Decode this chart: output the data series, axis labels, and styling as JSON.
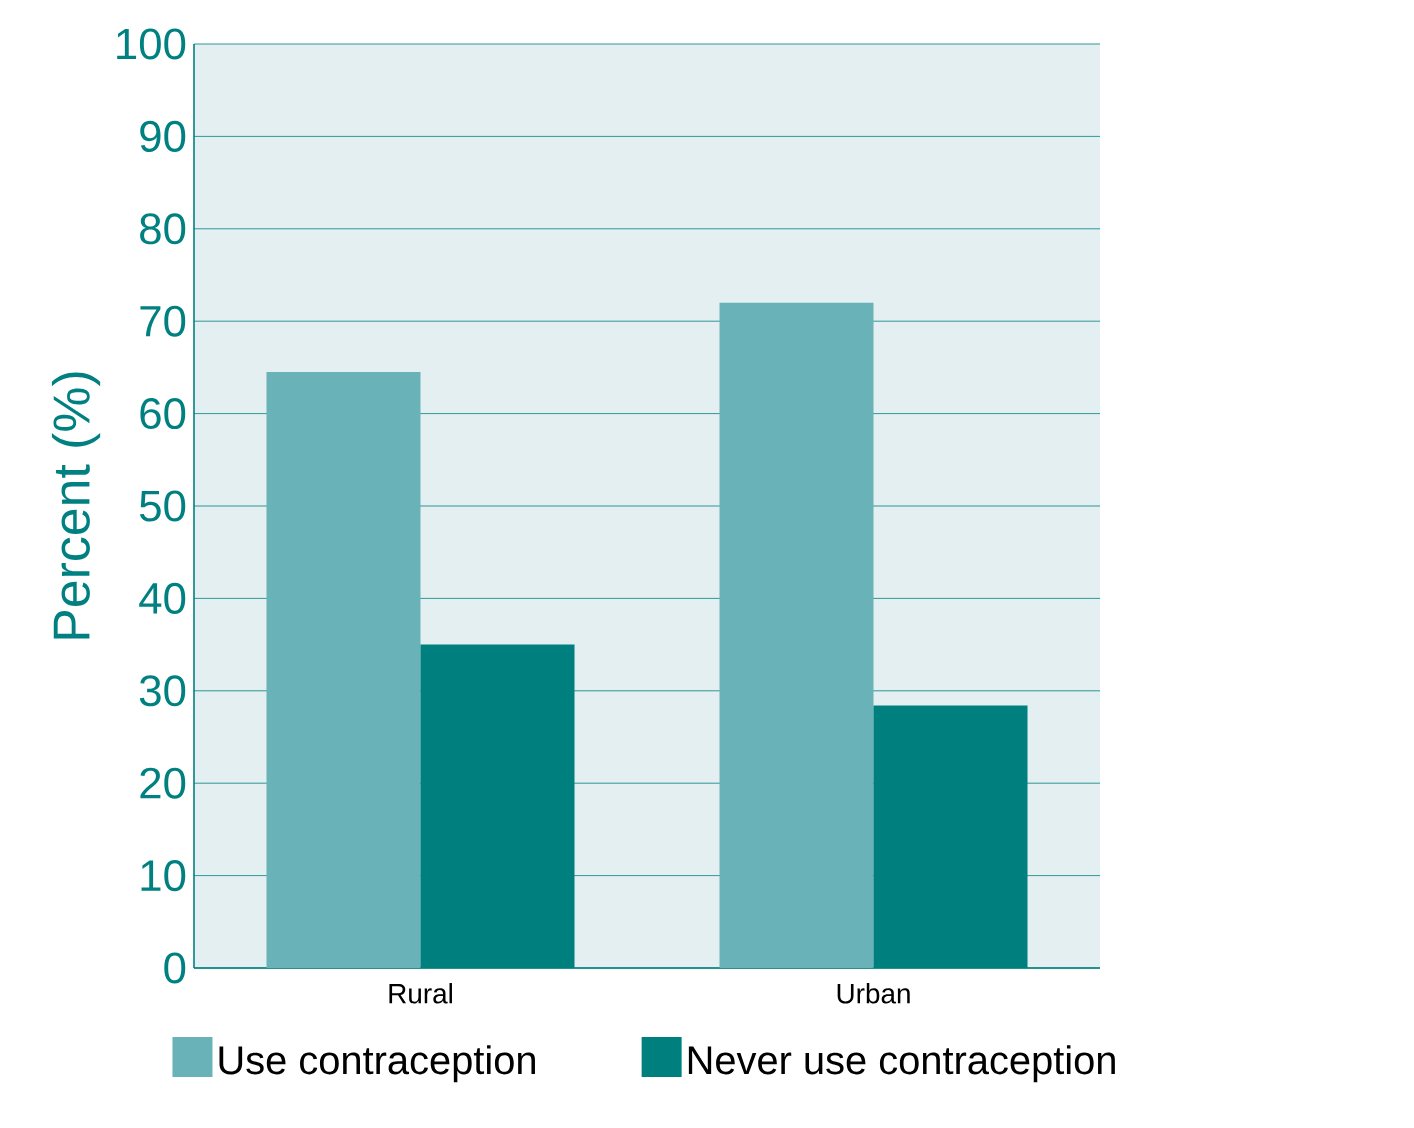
{
  "chart_data": {
    "type": "bar",
    "ylabel": "Percent (%)",
    "categories": [
      "Rural",
      "Urban"
    ],
    "series": [
      {
        "name": "Use contraception",
        "color": "#69b3b8",
        "values": [
          64.5,
          72
        ]
      },
      {
        "name": "Never use contraception",
        "color": "#007f7f",
        "values": [
          35,
          28.4
        ]
      }
    ],
    "ylim": [
      0,
      100
    ],
    "yticks": [
      0,
      10,
      20,
      30,
      40,
      50,
      60,
      70,
      80,
      90,
      100
    ],
    "grid": "y",
    "legend": "bottom"
  }
}
